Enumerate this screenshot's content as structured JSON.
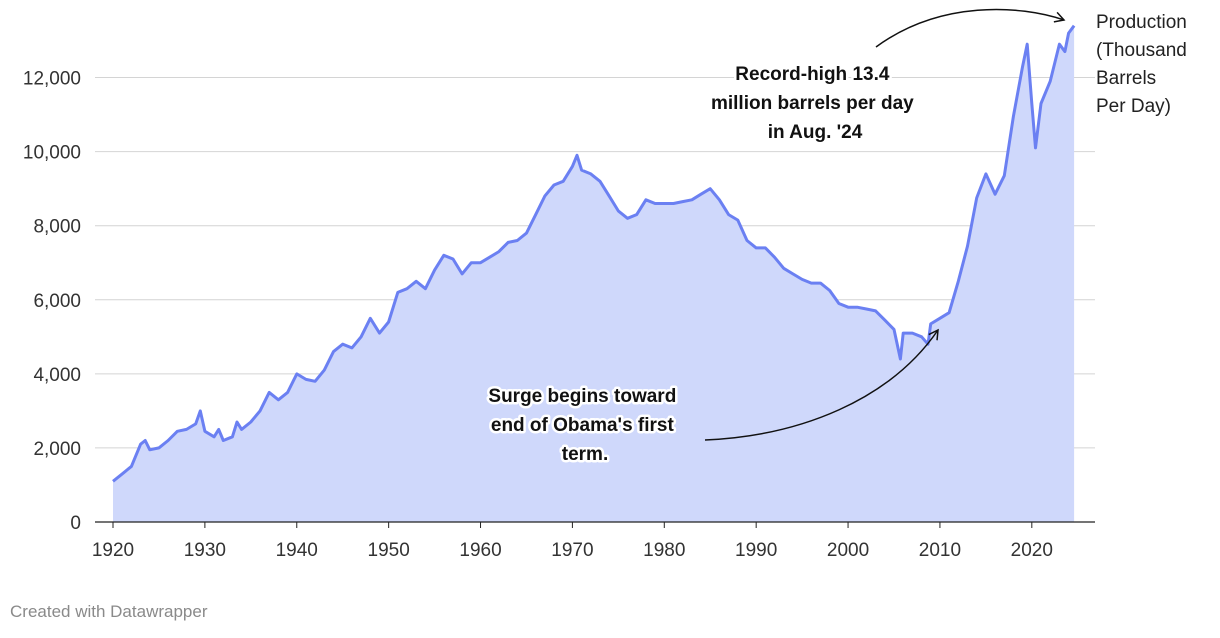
{
  "chart_data": {
    "type": "area",
    "title": "",
    "xlabel": "",
    "ylabel": "",
    "series_label": [
      "Production",
      "(Thousand",
      "Barrels",
      "Per Day)"
    ],
    "xlim": [
      1920,
      2024.7
    ],
    "ylim": [
      0,
      13500
    ],
    "y_ticks": [
      0,
      2000,
      4000,
      6000,
      8000,
      10000,
      12000
    ],
    "y_tick_labels": [
      "0",
      "2,000",
      "4,000",
      "6,000",
      "8,000",
      "10,000",
      "12,000"
    ],
    "x_ticks": [
      1920,
      1930,
      1940,
      1950,
      1960,
      1970,
      1980,
      1990,
      2000,
      2010,
      2020
    ],
    "x_tick_labels": [
      "1920",
      "1930",
      "1940",
      "1950",
      "1960",
      "1970",
      "1980",
      "1990",
      "2000",
      "2010",
      "2020"
    ],
    "colors": {
      "line": "#6b80f2",
      "fill": "#cfd8fb",
      "grid": "#d4d4d4",
      "axis": "#222222"
    },
    "series": [
      {
        "name": "Production (Thousand Barrels Per Day)",
        "x": [
          1920,
          1921,
          1922,
          1923,
          1923.5,
          1924,
          1925,
          1926,
          1927,
          1928,
          1929,
          1929.5,
          1930,
          1931,
          1931.5,
          1932,
          1933,
          1933.5,
          1934,
          1935,
          1936,
          1937,
          1938,
          1939,
          1940,
          1941,
          1942,
          1943,
          1944,
          1945,
          1946,
          1947,
          1948,
          1949,
          1950,
          1951,
          1952,
          1953,
          1954,
          1955,
          1956,
          1957,
          1958,
          1959,
          1960,
          1961,
          1962,
          1963,
          1964,
          1965,
          1966,
          1967,
          1968,
          1969,
          1970,
          1970.5,
          1971,
          1972,
          1973,
          1974,
          1975,
          1976,
          1977,
          1978,
          1979,
          1980,
          1981,
          1982,
          1983,
          1984,
          1985,
          1986,
          1987,
          1988,
          1989,
          1990,
          1991,
          1992,
          1993,
          1994,
          1995,
          1996,
          1997,
          1998,
          1999,
          2000,
          2001,
          2002,
          2003,
          2004,
          2005,
          2005.7,
          2006,
          2007,
          2008,
          2008.7,
          2009,
          2010,
          2011,
          2012,
          2013,
          2014,
          2015,
          2016,
          2017,
          2018,
          2019,
          2019.5,
          2020,
          2020.4,
          2021,
          2022,
          2023,
          2023.6,
          2024,
          2024.6
        ],
        "values": [
          1100,
          1300,
          1500,
          2100,
          2200,
          1950,
          2000,
          2200,
          2450,
          2500,
          2650,
          3000,
          2450,
          2300,
          2500,
          2200,
          2300,
          2700,
          2500,
          2700,
          3000,
          3500,
          3300,
          3500,
          4000,
          3850,
          3800,
          4100,
          4600,
          4800,
          4700,
          5000,
          5500,
          5100,
          5400,
          6200,
          6300,
          6500,
          6300,
          6800,
          7200,
          7100,
          6700,
          7000,
          7000,
          7150,
          7300,
          7550,
          7600,
          7800,
          8300,
          8800,
          9100,
          9200,
          9600,
          9900,
          9500,
          9400,
          9200,
          8800,
          8400,
          8200,
          8300,
          8700,
          8600,
          8600,
          8600,
          8650,
          8700,
          8850,
          9000,
          8700,
          8300,
          8150,
          7600,
          7400,
          7400,
          7150,
          6850,
          6700,
          6550,
          6450,
          6450,
          6250,
          5900,
          5800,
          5800,
          5750,
          5700,
          5450,
          5200,
          4400,
          5100,
          5100,
          5000,
          4800,
          5350,
          5500,
          5650,
          6500,
          7450,
          8750,
          9400,
          8850,
          9350,
          10950,
          12300,
          12900,
          11300,
          10100,
          11300,
          11900,
          12900,
          12700,
          13200,
          13400
        ]
      }
    ],
    "annotations": [
      {
        "text_lines": [
          "Record-high 13.4",
          "million barrels per day",
          "in Aug. '24"
        ]
      },
      {
        "text_lines": [
          "Surge begins toward",
          "end of Obama's first",
          "term."
        ]
      }
    ],
    "footer": "Created with Datawrapper"
  }
}
